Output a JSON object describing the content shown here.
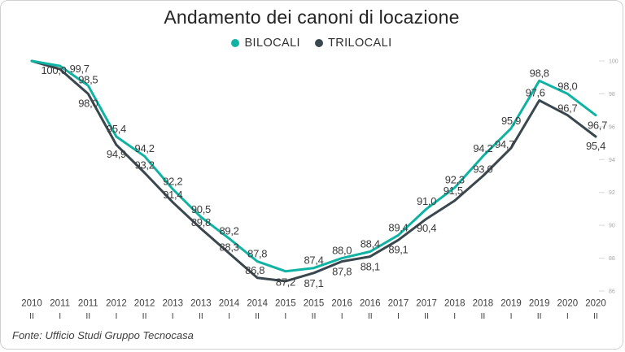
{
  "source": "Fonte: Ufficio Studi Gruppo Tecnocasa",
  "colors": {
    "bilocali": "#10b3a3",
    "trilocali": "#3a474e",
    "data_label": "#3b3b3b",
    "y_axis_label": "#a6a6a6",
    "y_axis_tick": "#d8d8d8",
    "x_axis_label": "#404040",
    "title": "#252423",
    "border": "#d1d1d1"
  },
  "chart_data": {
    "type": "line",
    "title": "Andamento dei canoni di locazione",
    "decimal_separator": ",",
    "legend_position": "top-center",
    "grid": false,
    "x_categories": [
      {
        "year": "2010",
        "semester": "II"
      },
      {
        "year": "2011",
        "semester": "I"
      },
      {
        "year": "2011",
        "semester": "II"
      },
      {
        "year": "2012",
        "semester": "I"
      },
      {
        "year": "2012",
        "semester": "II"
      },
      {
        "year": "2013",
        "semester": "I"
      },
      {
        "year": "2013",
        "semester": "II"
      },
      {
        "year": "2014",
        "semester": "I"
      },
      {
        "year": "2014",
        "semester": "II"
      },
      {
        "year": "2015",
        "semester": "I"
      },
      {
        "year": "2015",
        "semester": "II"
      },
      {
        "year": "2016",
        "semester": "I"
      },
      {
        "year": "2016",
        "semester": "II"
      },
      {
        "year": "2017",
        "semester": "I"
      },
      {
        "year": "2017",
        "semester": "II"
      },
      {
        "year": "2018",
        "semester": "I"
      },
      {
        "year": "2018",
        "semester": "II"
      },
      {
        "year": "2019",
        "semester": "I"
      },
      {
        "year": "2019",
        "semester": "II"
      },
      {
        "year": "2020",
        "semester": "I"
      },
      {
        "year": "2020",
        "semester": "II"
      }
    ],
    "y_axis": {
      "min": 86,
      "max": 100,
      "step": 2,
      "side": "right"
    },
    "series": [
      {
        "name": "BILOCALI",
        "color": "#10b3a3",
        "values": [
          100.0,
          99.7,
          98.5,
          95.4,
          94.2,
          92.2,
          90.5,
          89.2,
          87.8,
          87.2,
          87.4,
          88.0,
          88.4,
          89.4,
          91.0,
          92.3,
          94.2,
          95.9,
          98.8,
          98.0,
          96.7
        ],
        "labels": [
          "100,0",
          "99,7",
          "98,5",
          "95,4",
          "94,2",
          "92,2",
          "90,5",
          "89,2",
          "87,8",
          "87,2",
          "87,4",
          "88,0",
          "88,4",
          "89,4",
          "91,0",
          "92,3",
          "94,2",
          "95,9",
          "98,8",
          "98,0",
          "96,7"
        ],
        "label_default_dy": -5,
        "label_offsets": {
          "0": [
            27,
            16
          ],
          "1": [
            24,
            8
          ],
          "2": [
            0,
            -3
          ],
          "9": [
            0,
            18
          ],
          "20": [
            2,
            17
          ]
        }
      },
      {
        "name": "TRILOCALI",
        "color": "#3a474e",
        "values": [
          100.0,
          99.5,
          98.0,
          94.9,
          93.2,
          91.4,
          89.8,
          88.3,
          86.8,
          86.6,
          87.1,
          87.8,
          88.1,
          89.1,
          90.4,
          91.5,
          93.0,
          94.7,
          97.6,
          96.7,
          95.4
        ],
        "labels": [
          null,
          null,
          "98,0",
          "94,9",
          "93,2",
          "91,4",
          "89,8",
          "88,3",
          "86,8",
          null,
          "87,1",
          "87,8",
          "88,1",
          "89,1",
          "90,4",
          "91,5",
          "93,0",
          "94,7",
          "97,6",
          "96,7",
          "95,4"
        ],
        "label_default_dy": 15,
        "label_offsets": {
          "2": [
            0,
            16
          ],
          "3": [
            0,
            16
          ],
          "4": [
            0,
            -5
          ],
          "5": [
            0,
            -5
          ],
          "6": [
            0,
            -3
          ],
          "7": [
            0,
            -3
          ],
          "8": [
            -3,
            -5
          ],
          "10": [
            0,
            17
          ],
          "11": [
            0,
            17
          ],
          "12": [
            0,
            17
          ],
          "13": [
            0,
            16
          ],
          "14": [
            0,
            16
          ],
          "15": [
            -2,
            -8
          ],
          "16": [
            0,
            -4
          ],
          "17": [
            -8,
            0
          ],
          "18": [
            -5,
            -5
          ],
          "19": [
            0,
            -4
          ],
          "20": [
            0,
            16
          ]
        }
      }
    ]
  }
}
